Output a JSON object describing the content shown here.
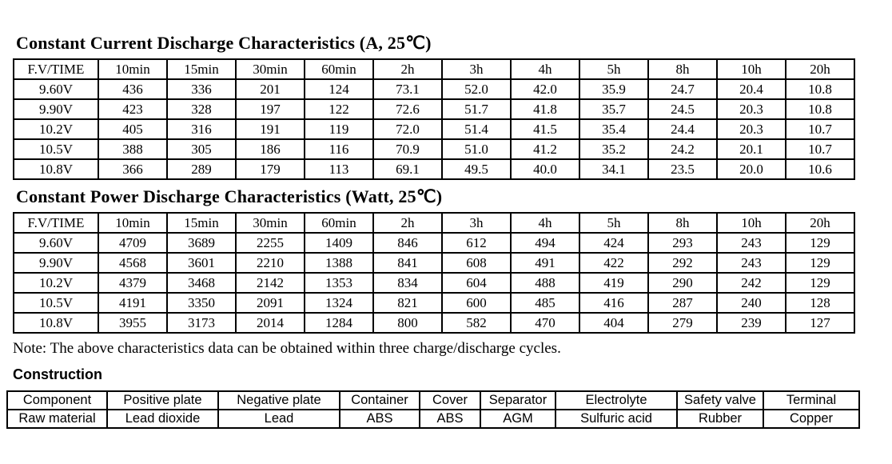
{
  "colors": {
    "text": "#000000",
    "background": "#ffffff",
    "border": "#000000"
  },
  "titles": {
    "current": "Constant Current Discharge Characteristics (A, 25℃)",
    "power": "Constant Power Discharge Characteristics (Watt, 25℃)",
    "construction": "Construction"
  },
  "note": "Note: The above characteristics data can be obtained within three charge/discharge cycles.",
  "current_table": {
    "headers": [
      "F.V/TIME",
      "10min",
      "15min",
      "30min",
      "60min",
      "2h",
      "3h",
      "4h",
      "5h",
      "8h",
      "10h",
      "20h"
    ],
    "rows": [
      [
        "9.60V",
        "436",
        "336",
        "201",
        "124",
        "73.1",
        "52.0",
        "42.0",
        "35.9",
        "24.7",
        "20.4",
        "10.8"
      ],
      [
        "9.90V",
        "423",
        "328",
        "197",
        "122",
        "72.6",
        "51.7",
        "41.8",
        "35.7",
        "24.5",
        "20.3",
        "10.8"
      ],
      [
        "10.2V",
        "405",
        "316",
        "191",
        "119",
        "72.0",
        "51.4",
        "41.5",
        "35.4",
        "24.4",
        "20.3",
        "10.7"
      ],
      [
        "10.5V",
        "388",
        "305",
        "186",
        "116",
        "70.9",
        "51.0",
        "41.2",
        "35.2",
        "24.2",
        "20.1",
        "10.7"
      ],
      [
        "10.8V",
        "366",
        "289",
        "179",
        "113",
        "69.1",
        "49.5",
        "40.0",
        "34.1",
        "23.5",
        "20.0",
        "10.6"
      ]
    ]
  },
  "power_table": {
    "headers": [
      "F.V/TIME",
      "10min",
      "15min",
      "30min",
      "60min",
      "2h",
      "3h",
      "4h",
      "5h",
      "8h",
      "10h",
      "20h"
    ],
    "rows": [
      [
        "9.60V",
        "4709",
        "3689",
        "2255",
        "1409",
        "846",
        "612",
        "494",
        "424",
        "293",
        "243",
        "129"
      ],
      [
        "9.90V",
        "4568",
        "3601",
        "2210",
        "1388",
        "841",
        "608",
        "491",
        "422",
        "292",
        "243",
        "129"
      ],
      [
        "10.2V",
        "4379",
        "3468",
        "2142",
        "1353",
        "834",
        "604",
        "488",
        "419",
        "290",
        "242",
        "129"
      ],
      [
        "10.5V",
        "4191",
        "3350",
        "2091",
        "1324",
        "821",
        "600",
        "485",
        "416",
        "287",
        "240",
        "128"
      ],
      [
        "10.8V",
        "3955",
        "3173",
        "2014",
        "1284",
        "800",
        "582",
        "470",
        "404",
        "279",
        "239",
        "127"
      ]
    ]
  },
  "construction_table": {
    "headers": [
      "Component",
      "Positive plate",
      "Negative plate",
      "Container",
      "Cover",
      "Separator",
      "Electrolyte",
      "Safety valve",
      "Terminal"
    ],
    "rows": [
      [
        "Raw material",
        "Lead dioxide",
        "Lead",
        "ABS",
        "ABS",
        "AGM",
        "Sulfuric acid",
        "Rubber",
        "Copper"
      ]
    ]
  }
}
